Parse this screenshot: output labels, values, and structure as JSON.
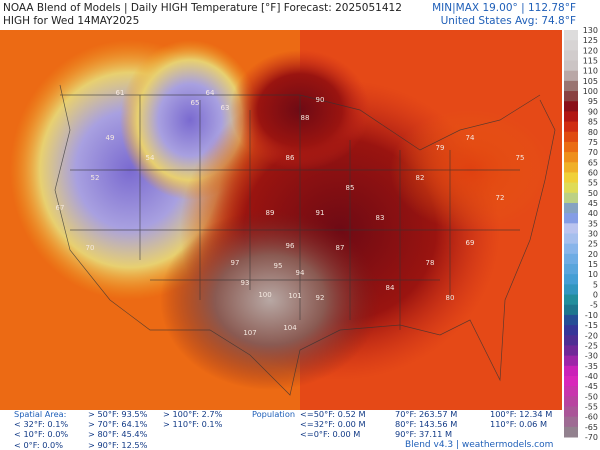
{
  "header": {
    "title": "NOAA Blend of Models | Daily HIGH Temperature [°F] Forecast: 2025051412",
    "subtitle": "HIGH for Wed 14MAY2025",
    "minmax": "MIN|MAX 19.00° | 112.78°F",
    "average": "United States Avg: 74.8°F"
  },
  "colorbar": {
    "ticks": [
      130,
      125,
      120,
      115,
      110,
      105,
      100,
      95,
      90,
      85,
      80,
      75,
      70,
      65,
      60,
      55,
      50,
      45,
      40,
      35,
      30,
      25,
      20,
      15,
      10,
      5,
      0,
      -5,
      -10,
      -15,
      -20,
      -25,
      -30,
      -35,
      -40,
      -45,
      -50,
      -55,
      -60,
      -65,
      -70
    ]
  },
  "map": {
    "labels": [
      "90",
      "88",
      "86",
      "93",
      "95",
      "100",
      "104",
      "107",
      "96",
      "91",
      "85",
      "83",
      "82",
      "79",
      "74",
      "65",
      "61",
      "54",
      "52",
      "49",
      "69",
      "72",
      "78",
      "87",
      "94",
      "89",
      "84",
      "80",
      "67",
      "70",
      "64",
      "63",
      "92",
      "97",
      "101",
      "75"
    ]
  },
  "footer": {
    "spatial_title": "Spatial Area:",
    "spatial": [
      "< 32°F: 0.1%",
      "< 10°F: 0.0%",
      "< 0°F: 0.0%",
      "> 50°F: 93.5%",
      "> 70°F: 64.1%",
      "> 80°F: 45.4%",
      "> 90°F: 12.5%",
      "> 100°F: 2.7%",
      "> 110°F: 0.1%"
    ],
    "population_title": "Population",
    "population": [
      "<=50°F: 0.52 M",
      "<=32°F: 0.00 M",
      "<=0°F: 0.00 M",
      "70°F: 263.57 M",
      "80°F: 143.56 M",
      "90°F: 37.11 M",
      "100°F: 12.34 M",
      "110°F: 0.06 M"
    ],
    "credit": "Blend v4.3 | weathermodels.com"
  }
}
